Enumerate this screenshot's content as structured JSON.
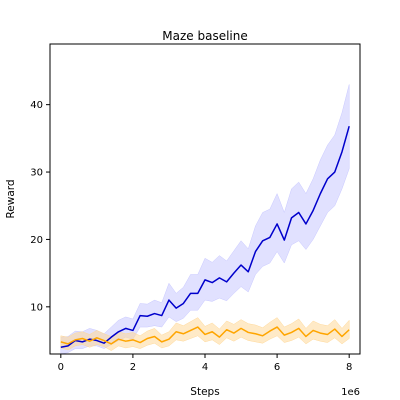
{
  "chart_data": {
    "type": "line",
    "title": "Maze baseline",
    "xlabel": "Steps",
    "ylabel": "Reward",
    "x_offset_label": "1e6",
    "xlim": [
      -0.3,
      8.3
    ],
    "ylim": [
      3.0,
      49.0
    ],
    "xticks": [
      0,
      2,
      4,
      6,
      8
    ],
    "yticks": [
      10,
      20,
      30,
      40
    ],
    "grid": false,
    "legend": "none",
    "series": [
      {
        "color": "#0000cc",
        "band_color": "#c8c8ff",
        "x": [
          0.0,
          0.2,
          0.4,
          0.6,
          0.8,
          1.0,
          1.2,
          1.4,
          1.6,
          1.8,
          2.0,
          2.2,
          2.4,
          2.6,
          2.8,
          3.0,
          3.2,
          3.4,
          3.6,
          3.8,
          4.0,
          4.2,
          4.4,
          4.6,
          4.8,
          5.0,
          5.2,
          5.4,
          5.6,
          5.8,
          6.0,
          6.2,
          6.4,
          6.6,
          6.8,
          7.0,
          7.2,
          7.4,
          7.6,
          7.8,
          8.0
        ],
        "y": [
          4.0,
          4.2,
          5.0,
          4.8,
          5.2,
          5.0,
          4.6,
          5.5,
          6.3,
          6.8,
          6.5,
          8.7,
          8.6,
          9.0,
          8.7,
          11.0,
          9.8,
          10.5,
          12.0,
          12.0,
          14.0,
          13.6,
          14.3,
          13.7,
          15.0,
          16.2,
          15.2,
          18.2,
          19.8,
          20.3,
          22.3,
          19.9,
          23.2,
          24.0,
          22.3,
          24.3,
          26.8,
          29.0,
          30.0,
          33.0,
          36.8
        ],
        "lower": [
          3.0,
          3.2,
          3.8,
          3.8,
          4.2,
          4.2,
          3.8,
          4.4,
          5.0,
          5.5,
          5.2,
          7.0,
          7.0,
          7.2,
          7.0,
          8.5,
          7.8,
          8.3,
          9.5,
          9.5,
          11.0,
          10.8,
          11.3,
          10.9,
          12.0,
          13.0,
          12.2,
          14.8,
          16.0,
          16.5,
          18.2,
          16.5,
          19.2,
          19.8,
          18.5,
          20.0,
          22.0,
          24.0,
          25.0,
          27.5,
          30.5
        ],
        "upper": [
          5.5,
          5.6,
          6.4,
          6.3,
          6.8,
          6.5,
          6.0,
          7.0,
          8.0,
          8.5,
          8.2,
          10.5,
          10.4,
          11.0,
          10.6,
          13.5,
          12.0,
          12.9,
          14.8,
          14.8,
          17.2,
          16.6,
          17.6,
          16.8,
          18.3,
          19.8,
          18.6,
          22.0,
          24.0,
          24.5,
          26.8,
          24.0,
          27.5,
          28.5,
          26.8,
          29.0,
          31.8,
          34.0,
          35.5,
          38.8,
          43.0
        ]
      },
      {
        "color": "#ffa500",
        "band_color": "#ffd999",
        "x": [
          0.0,
          0.2,
          0.4,
          0.6,
          0.8,
          1.0,
          1.2,
          1.4,
          1.6,
          1.8,
          2.0,
          2.2,
          2.4,
          2.6,
          2.8,
          3.0,
          3.2,
          3.4,
          3.6,
          3.8,
          4.0,
          4.2,
          4.4,
          4.6,
          4.8,
          5.0,
          5.2,
          5.4,
          5.6,
          5.8,
          6.0,
          6.2,
          6.4,
          6.6,
          6.8,
          7.0,
          7.2,
          7.4,
          7.6,
          7.8,
          8.0
        ],
        "y": [
          4.8,
          4.5,
          5.1,
          5.3,
          4.9,
          5.4,
          5.0,
          4.5,
          5.2,
          4.9,
          5.1,
          4.7,
          5.3,
          5.6,
          4.8,
          5.2,
          6.3,
          6.0,
          6.5,
          7.0,
          5.9,
          6.3,
          5.5,
          6.6,
          6.1,
          6.8,
          6.2,
          6.0,
          5.7,
          6.4,
          7.0,
          5.8,
          6.2,
          6.8,
          5.6,
          6.5,
          6.1,
          5.9,
          6.7,
          5.6,
          6.6
        ],
        "lower": [
          3.9,
          3.6,
          4.2,
          4.4,
          4.0,
          4.4,
          4.1,
          3.5,
          4.2,
          3.9,
          4.1,
          3.8,
          4.3,
          4.6,
          3.9,
          4.2,
          5.1,
          4.9,
          5.3,
          5.7,
          4.8,
          5.1,
          4.4,
          5.4,
          4.9,
          5.5,
          5.0,
          4.8,
          4.6,
          5.2,
          5.7,
          4.7,
          5.0,
          5.5,
          4.5,
          5.2,
          4.9,
          4.7,
          5.4,
          4.5,
          5.3
        ],
        "upper": [
          5.7,
          5.5,
          6.1,
          6.3,
          5.9,
          6.5,
          6.0,
          5.6,
          6.3,
          6.0,
          6.2,
          5.7,
          6.4,
          6.8,
          5.8,
          6.3,
          7.6,
          7.2,
          7.8,
          8.4,
          7.1,
          7.6,
          6.7,
          7.9,
          7.4,
          8.1,
          7.5,
          7.3,
          6.9,
          7.7,
          8.4,
          7.0,
          7.5,
          8.2,
          6.8,
          7.9,
          7.4,
          7.2,
          8.1,
          6.8,
          8.0
        ]
      }
    ]
  }
}
